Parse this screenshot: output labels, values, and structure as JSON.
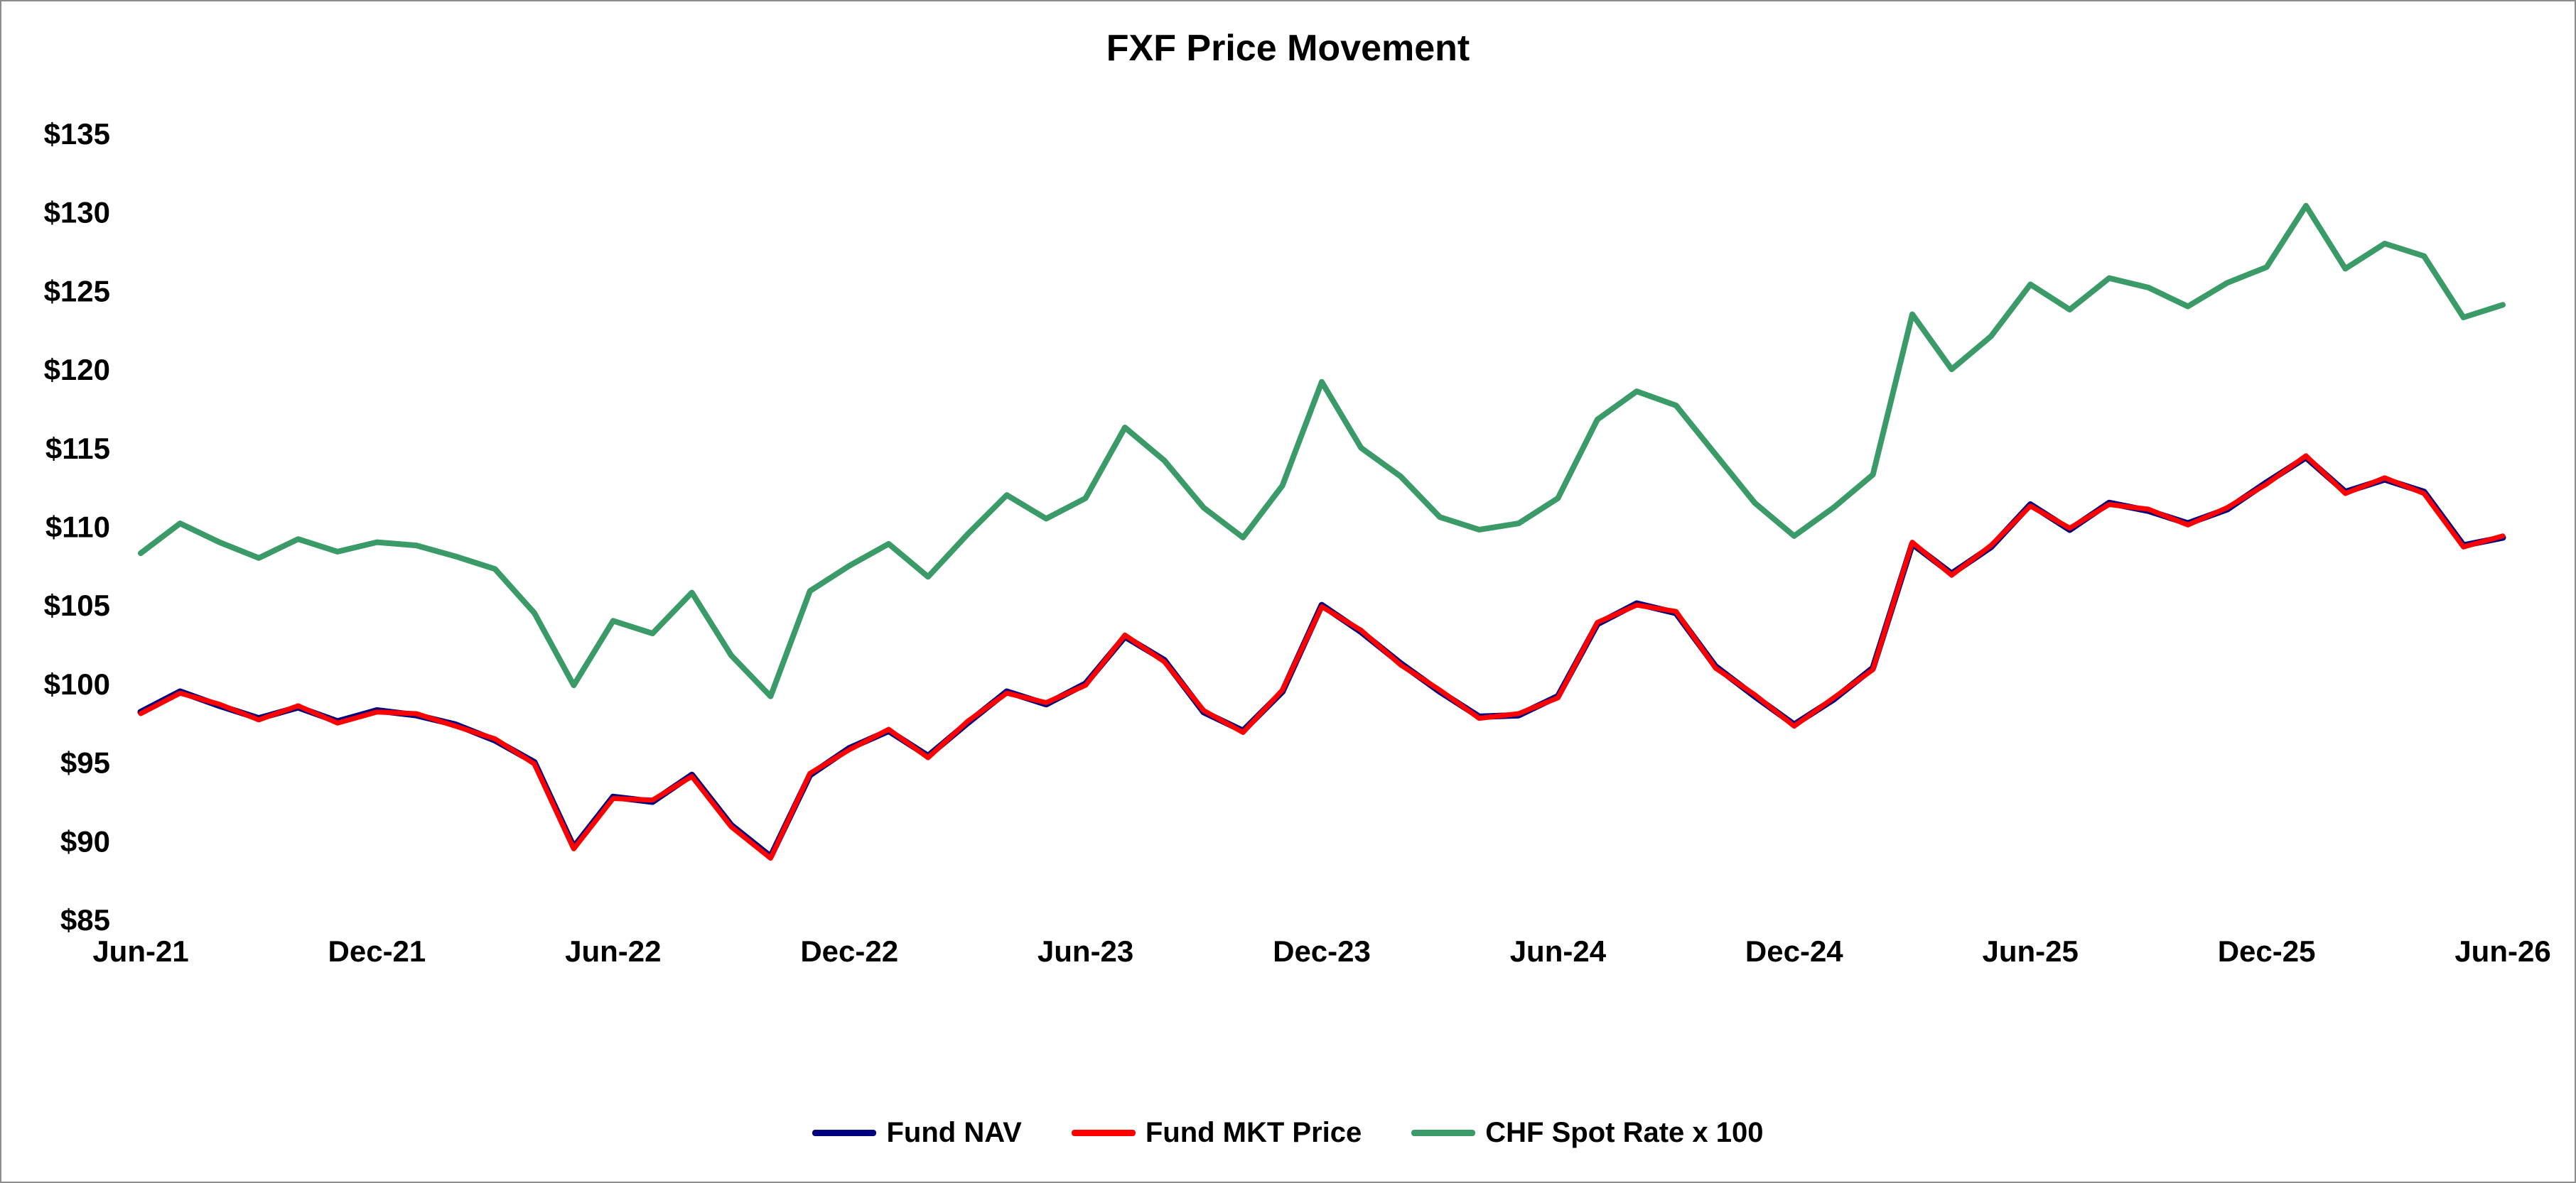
{
  "chart_data": {
    "type": "line",
    "title": "FXF Price Movement",
    "xlabel": "",
    "ylabel": "",
    "x_tick_labels": [
      "Jun-21",
      "Dec-21",
      "Jun-22",
      "Dec-22",
      "Jun-23",
      "Dec-23",
      "Jun-24",
      "Dec-24",
      "Jun-25",
      "Dec-25",
      "Jun-26"
    ],
    "y_tick_labels": [
      "$85",
      "$90",
      "$95",
      "$100",
      "$105",
      "$110",
      "$115",
      "$120",
      "$125",
      "$130",
      "$135"
    ],
    "ylim": [
      85,
      135
    ],
    "xlim": [
      "2021-06",
      "2026-06"
    ],
    "grid": false,
    "legend_position": "bottom",
    "series": [
      {
        "name": "Fund NAV",
        "color": "#00007f",
        "x": [
          "2021-06-01",
          "2021-07-01",
          "2021-08-01",
          "2021-09-01",
          "2021-10-01",
          "2021-11-01",
          "2021-12-01",
          "2022-01-01",
          "2022-02-01",
          "2022-03-01",
          "2022-04-01",
          "2022-05-01",
          "2022-06-01",
          "2022-07-01",
          "2022-08-01",
          "2022-09-01",
          "2022-10-01",
          "2022-11-01",
          "2022-12-01",
          "2023-01-01",
          "2023-02-01",
          "2023-03-01",
          "2023-04-01",
          "2023-05-01",
          "2023-06-01",
          "2023-07-01",
          "2023-08-01",
          "2023-09-01",
          "2023-10-01",
          "2023-11-01",
          "2023-12-01",
          "2024-01-01",
          "2024-02-01",
          "2024-03-01",
          "2024-04-01",
          "2024-05-01",
          "2024-06-01",
          "2024-07-01",
          "2024-08-01",
          "2024-09-01",
          "2024-10-01",
          "2024-11-01",
          "2024-12-01",
          "2025-01-01",
          "2025-02-01",
          "2025-03-01",
          "2025-04-01",
          "2025-05-01",
          "2025-06-01",
          "2025-07-01",
          "2025-08-01",
          "2025-09-01",
          "2025-10-01",
          "2025-11-01",
          "2025-12-01",
          "2026-01-01",
          "2026-02-01",
          "2026-03-01",
          "2026-04-01",
          "2026-05-01",
          "2026-06-01"
        ],
        "values": [
          98.2,
          99.5,
          98.6,
          97.8,
          98.5,
          97.6,
          98.3,
          98.0,
          97.4,
          96.4,
          95.0,
          89.6,
          92.8,
          92.5,
          94.2,
          91.0,
          89.0,
          94.2,
          95.9,
          97.0,
          95.4,
          97.5,
          99.5,
          98.7,
          100.0,
          103.0,
          101.5,
          98.2,
          97.0,
          99.5,
          105.0,
          103.3,
          101.3,
          99.5,
          97.9,
          98.0,
          99.2,
          103.8,
          105.1,
          104.5,
          101.1,
          99.2,
          97.4,
          99.0,
          101.0,
          108.9,
          107.0,
          108.7,
          111.4,
          109.8,
          111.5,
          111.0,
          110.2,
          111.1,
          112.8,
          114.4,
          112.2,
          113.0,
          112.2,
          108.8,
          109.3
        ]
      },
      {
        "name": "Fund MKT Price",
        "color": "#ff0000",
        "x": [
          "2021-06-01",
          "2021-07-01",
          "2021-08-01",
          "2021-09-01",
          "2021-10-01",
          "2021-11-01",
          "2021-12-01",
          "2022-01-01",
          "2022-02-01",
          "2022-03-01",
          "2022-04-01",
          "2022-05-01",
          "2022-06-01",
          "2022-07-01",
          "2022-08-01",
          "2022-09-01",
          "2022-10-01",
          "2022-11-01",
          "2022-12-01",
          "2023-01-01",
          "2023-02-01",
          "2023-03-01",
          "2023-04-01",
          "2023-05-01",
          "2023-06-01",
          "2023-07-01",
          "2023-08-01",
          "2023-09-01",
          "2023-10-01",
          "2023-11-01",
          "2023-12-01",
          "2024-01-01",
          "2024-02-01",
          "2024-03-01",
          "2024-04-01",
          "2024-05-01",
          "2024-06-01",
          "2024-07-01",
          "2024-08-01",
          "2024-09-01",
          "2024-10-01",
          "2024-11-01",
          "2024-12-01",
          "2025-01-01",
          "2025-02-01",
          "2025-03-01",
          "2025-04-01",
          "2025-05-01",
          "2025-06-01",
          "2025-07-01",
          "2025-08-01",
          "2025-09-01",
          "2025-10-01",
          "2025-11-01",
          "2025-12-01",
          "2026-01-01",
          "2026-02-01",
          "2026-03-01",
          "2026-04-01",
          "2026-05-01",
          "2026-06-01"
        ],
        "values": [
          98.1,
          99.4,
          98.7,
          97.7,
          98.6,
          97.5,
          98.2,
          98.1,
          97.3,
          96.5,
          94.9,
          89.5,
          92.7,
          92.6,
          94.1,
          90.9,
          88.9,
          94.3,
          95.8,
          97.1,
          95.3,
          97.6,
          99.4,
          98.8,
          99.9,
          103.1,
          101.4,
          98.3,
          96.9,
          99.6,
          104.9,
          103.4,
          101.2,
          99.6,
          97.8,
          98.1,
          99.1,
          103.9,
          105.0,
          104.6,
          101.0,
          99.3,
          97.3,
          99.1,
          100.9,
          109.0,
          106.9,
          108.8,
          111.3,
          109.9,
          111.4,
          111.1,
          110.1,
          111.2,
          112.7,
          114.5,
          112.1,
          113.1,
          112.1,
          108.7,
          109.4
        ]
      },
      {
        "name": "CHF Spot Rate x 100",
        "color": "#3a9a68",
        "x": [
          "2021-06-01",
          "2021-07-01",
          "2021-08-01",
          "2021-09-01",
          "2021-10-01",
          "2021-11-01",
          "2021-12-01",
          "2022-01-01",
          "2022-02-01",
          "2022-03-01",
          "2022-04-01",
          "2022-05-01",
          "2022-06-01",
          "2022-07-01",
          "2022-08-01",
          "2022-09-01",
          "2022-10-01",
          "2022-11-01",
          "2022-12-01",
          "2023-01-01",
          "2023-02-01",
          "2023-03-01",
          "2023-04-01",
          "2023-05-01",
          "2023-06-01",
          "2023-07-01",
          "2023-08-01",
          "2023-09-01",
          "2023-10-01",
          "2023-11-01",
          "2023-12-01",
          "2024-01-01",
          "2024-02-01",
          "2024-03-01",
          "2024-04-01",
          "2024-05-01",
          "2024-06-01",
          "2024-07-01",
          "2024-08-01",
          "2024-09-01",
          "2024-10-01",
          "2024-11-01",
          "2024-12-01",
          "2025-01-01",
          "2025-02-01",
          "2025-03-01",
          "2025-04-01",
          "2025-05-01",
          "2025-06-01",
          "2025-07-01",
          "2025-08-01",
          "2025-09-01",
          "2025-10-01",
          "2025-11-01",
          "2025-12-01",
          "2026-01-01",
          "2026-02-01",
          "2026-03-01",
          "2026-04-01",
          "2026-05-01",
          "2026-06-01"
        ],
        "values": [
          108.3,
          110.2,
          109.0,
          108.0,
          109.2,
          108.4,
          109.0,
          108.8,
          108.1,
          107.3,
          104.5,
          99.9,
          104.0,
          103.2,
          105.8,
          101.8,
          99.2,
          105.9,
          107.5,
          108.9,
          106.8,
          109.5,
          112.0,
          110.5,
          111.8,
          116.3,
          114.2,
          111.2,
          109.3,
          112.6,
          119.2,
          115.0,
          113.2,
          110.6,
          109.8,
          110.2,
          111.8,
          116.8,
          118.6,
          117.7,
          114.6,
          111.5,
          109.4,
          111.2,
          113.3,
          123.5,
          120.0,
          122.1,
          125.4,
          123.8,
          125.8,
          125.2,
          124.0,
          125.5,
          126.5,
          130.4,
          126.4,
          128.0,
          127.2,
          123.3,
          124.1
        ]
      }
    ]
  }
}
